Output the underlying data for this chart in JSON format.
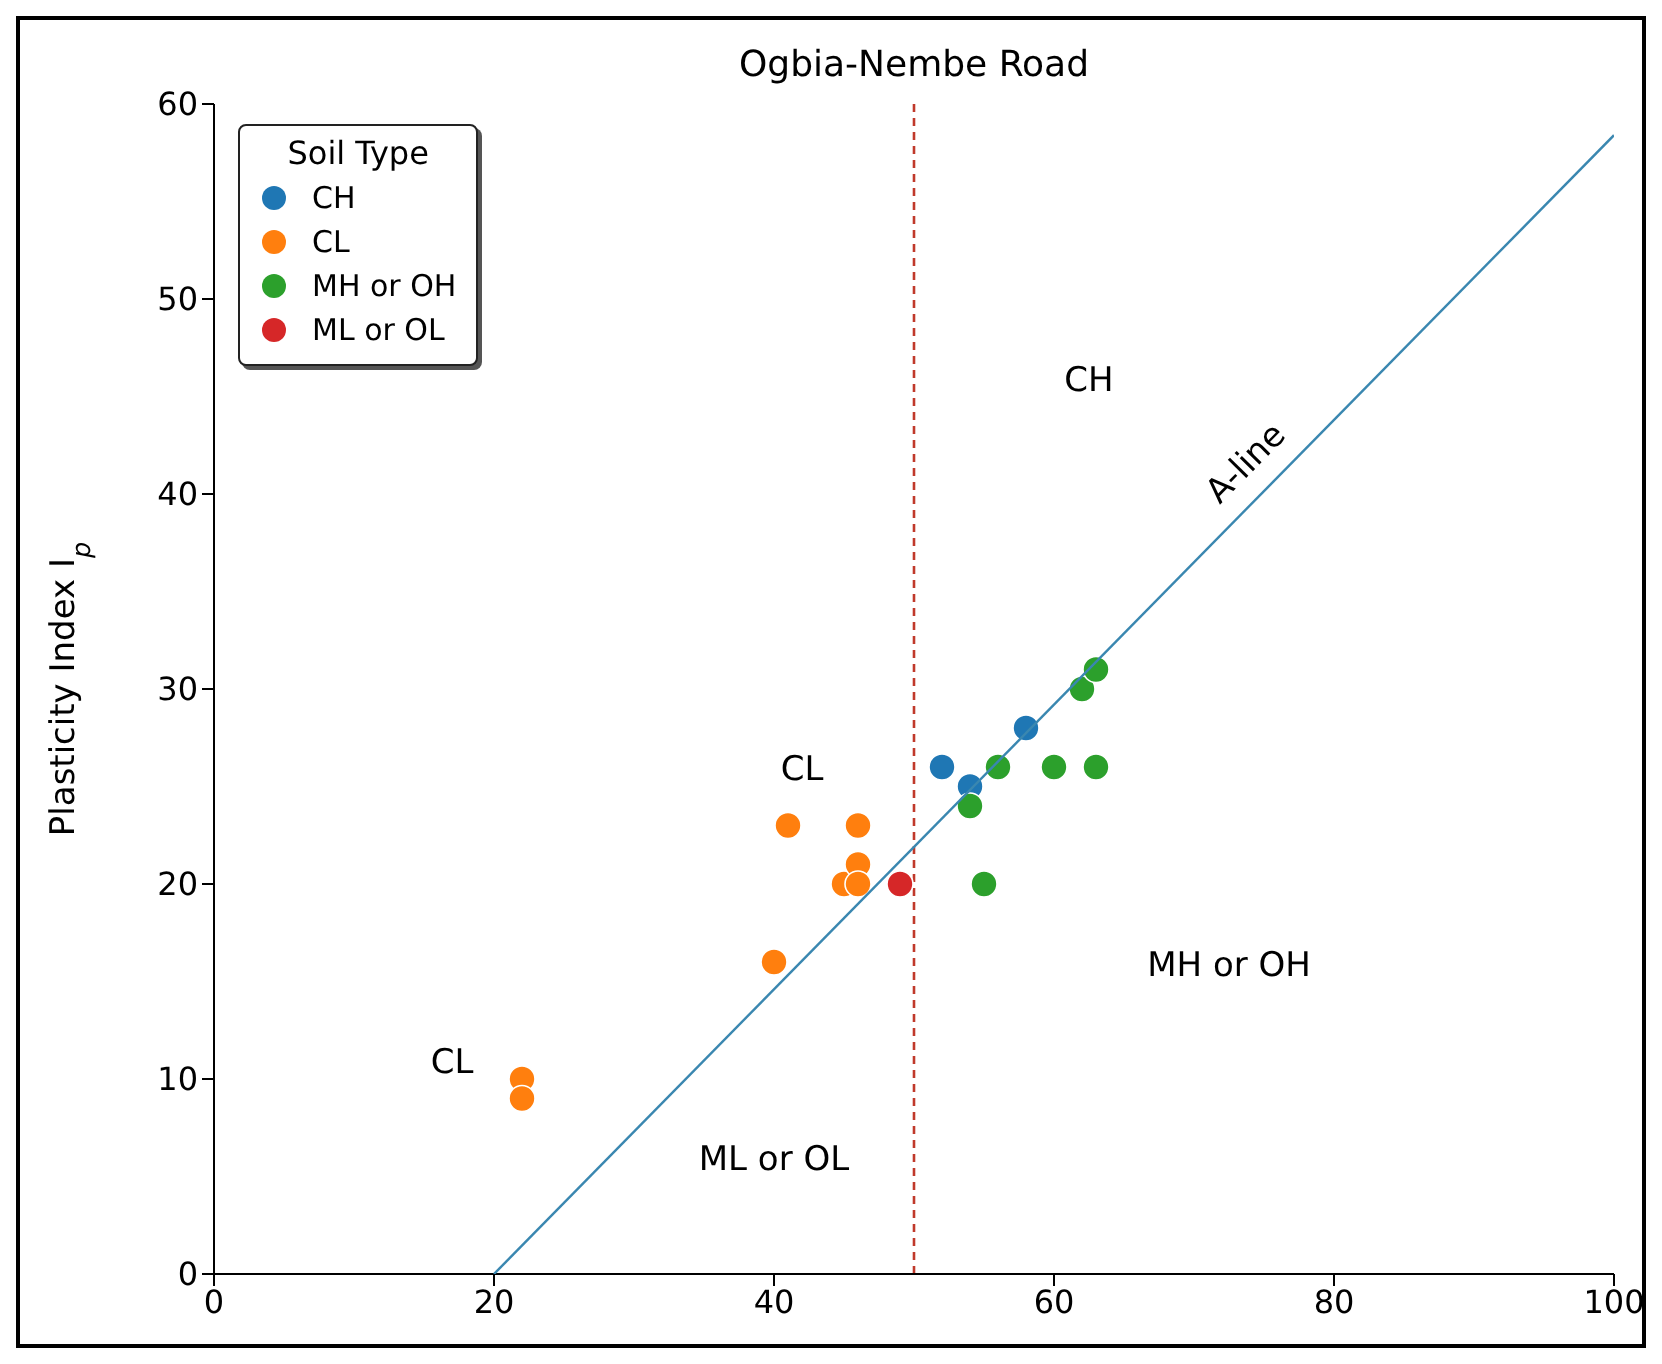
{
  "chart_data": {
    "type": "scatter",
    "title": "Ogbia-Nembe Road",
    "ylabel": "Plasticity Index I$_{p}$",
    "legend_title": "Soil Type",
    "legend": "top left",
    "marker": "circle",
    "grid": false,
    "xlim": [
      0,
      100
    ],
    "xticks": [
      0,
      20,
      40,
      60,
      80,
      100
    ],
    "ylim": [
      0,
      60
    ],
    "yticks": [
      0,
      10,
      20,
      30,
      40,
      50,
      60
    ],
    "series": [
      {
        "name": "CH",
        "color": "#1f77b4",
        "x": [
          52,
          54,
          58
        ],
        "values": [
          26,
          25,
          28
        ]
      },
      {
        "name": "CL",
        "color": "#ff7f0e",
        "x": [
          22,
          22,
          40,
          41,
          45,
          46,
          46,
          46
        ],
        "values": [
          10,
          9,
          16,
          23,
          20,
          23,
          21,
          20
        ]
      },
      {
        "name": "MH or OH",
        "color": "#2ca02c",
        "x": [
          54,
          55,
          56,
          60,
          62,
          63,
          63
        ],
        "values": [
          24,
          20,
          26,
          26,
          30,
          31,
          26
        ]
      },
      {
        "name": "ML or OL",
        "color": "#d62728",
        "x": [
          49
        ],
        "values": [
          20
        ]
      },
      {
        "name": "A-line",
        "type": "line",
        "color": "#3a87b0",
        "marker": "none",
        "x": [
          20,
          100
        ],
        "values": [
          0,
          58.4
        ]
      }
    ],
    "ref_lines": [
      {
        "axis": "x",
        "value": 50,
        "color": "#c0392b",
        "line_style": "dashed"
      }
    ],
    "annotations": [
      "CH",
      "CL",
      "MH or OH",
      "ML or OL",
      "CL"
    ]
  }
}
